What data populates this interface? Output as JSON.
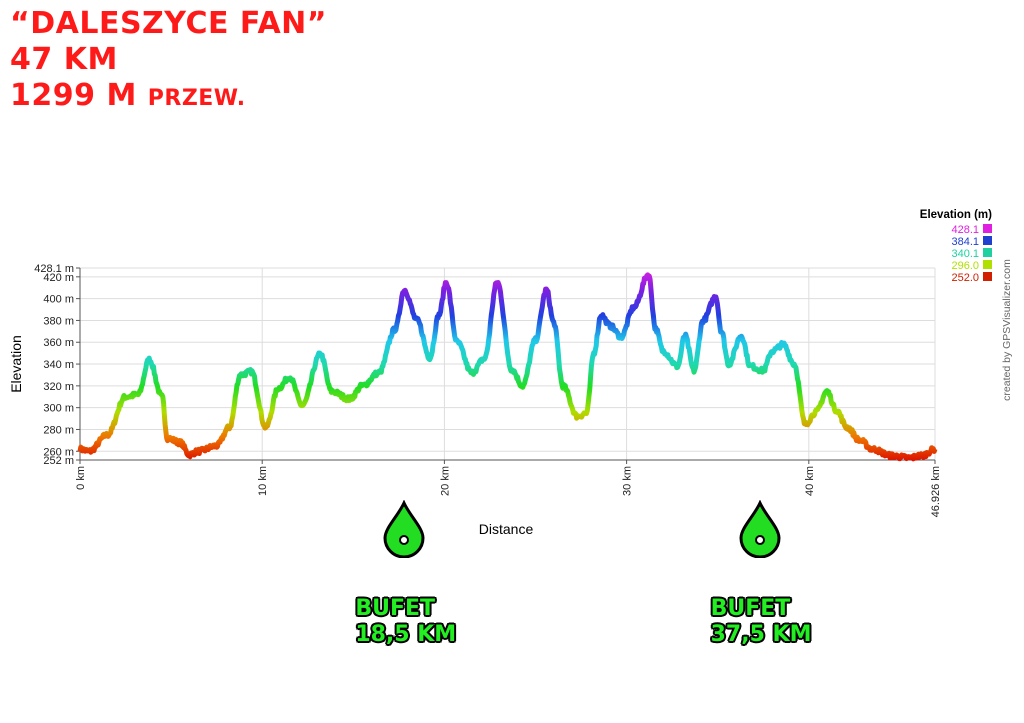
{
  "header": {
    "line1": "“DALESZYCE FAN”",
    "line2": "47 KM",
    "line3_num": "1299 M",
    "line3_suffix": "PRZEW."
  },
  "markers": [
    {
      "title": "BUFET",
      "distance_label": "18,5 KM",
      "km": 17.8
    },
    {
      "title": "BUFET",
      "distance_label": "37,5 KM",
      "km": 37.3
    }
  ],
  "colors": {
    "headline": "#ff1a1a",
    "marker": "#22ee22",
    "grid": "#dddddd"
  },
  "chart_data": {
    "type": "line",
    "xlabel": "Distance",
    "ylabel": "Elevation",
    "xlim": [
      0,
      46.926
    ],
    "ylim": [
      252,
      428.1
    ],
    "x_ticks": [
      {
        "v": 0,
        "label": "0 km"
      },
      {
        "v": 10,
        "label": "10 km"
      },
      {
        "v": 20,
        "label": "20 km"
      },
      {
        "v": 30,
        "label": "30 km"
      },
      {
        "v": 40,
        "label": "40 km"
      },
      {
        "v": 46.926,
        "label": "46.926 km"
      }
    ],
    "y_ticks": [
      {
        "v": 252,
        "label": "252 m"
      },
      {
        "v": 260,
        "label": "260 m"
      },
      {
        "v": 280,
        "label": "280 m"
      },
      {
        "v": 300,
        "label": "300 m"
      },
      {
        "v": 320,
        "label": "320 m"
      },
      {
        "v": 340,
        "label": "340 m"
      },
      {
        "v": 360,
        "label": "360 m"
      },
      {
        "v": 380,
        "label": "380 m"
      },
      {
        "v": 400,
        "label": "400 m"
      },
      {
        "v": 420,
        "label": "420 m"
      },
      {
        "v": 428.1,
        "label": "428.1 m"
      }
    ],
    "legend": {
      "title": "Elevation (m)",
      "position": "top-right",
      "entries": [
        {
          "label": "428.1",
          "color": "#e020e0"
        },
        {
          "label": "384.1",
          "color": "#2040d0"
        },
        {
          "label": "340.1",
          "color": "#20d0a0"
        },
        {
          "label": "296.0",
          "color": "#b0e000"
        },
        {
          "label": "252.0",
          "color": "#d02000"
        }
      ]
    },
    "credit": "created by GPSVisualizer.com",
    "x": [
      0,
      0.5,
      1.5,
      2.5,
      3.2,
      3.8,
      4.5,
      4.8,
      5.5,
      6.0,
      6.5,
      7.5,
      8.2,
      8.8,
      9.4,
      10.2,
      10.9,
      11.5,
      12.2,
      13.2,
      13.8,
      14.8,
      15.5,
      16.4,
      17.3,
      17.8,
      18.5,
      19.2,
      19.7,
      20.1,
      20.7,
      21.5,
      22.2,
      22.9,
      23.7,
      24.3,
      25.0,
      25.6,
      26.0,
      26.5,
      27.3,
      27.8,
      28.2,
      28.6,
      29.1,
      29.7,
      30.4,
      31.2,
      31.6,
      32.0,
      32.8,
      33.2,
      33.7,
      34.2,
      34.9,
      35.2,
      35.6,
      36.3,
      36.8,
      37.5,
      38.0,
      38.6,
      39.2,
      39.8,
      40.4,
      41.0,
      41.5,
      42.1,
      42.8,
      43.5,
      44.5,
      45.5,
      46.2,
      46.926
    ],
    "y": [
      262,
      260,
      275,
      310,
      312,
      344,
      310,
      272,
      268,
      257,
      260,
      265,
      282,
      330,
      333,
      282,
      318,
      328,
      302,
      349,
      315,
      308,
      320,
      332,
      372,
      408,
      380,
      346,
      385,
      415,
      360,
      332,
      345,
      415,
      335,
      320,
      362,
      408,
      378,
      320,
      292,
      295,
      350,
      385,
      375,
      365,
      392,
      422,
      372,
      352,
      338,
      366,
      334,
      380,
      402,
      370,
      340,
      366,
      338,
      334,
      352,
      358,
      340,
      285,
      296,
      315,
      298,
      282,
      270,
      262,
      256,
      254,
      256,
      262
    ]
  }
}
